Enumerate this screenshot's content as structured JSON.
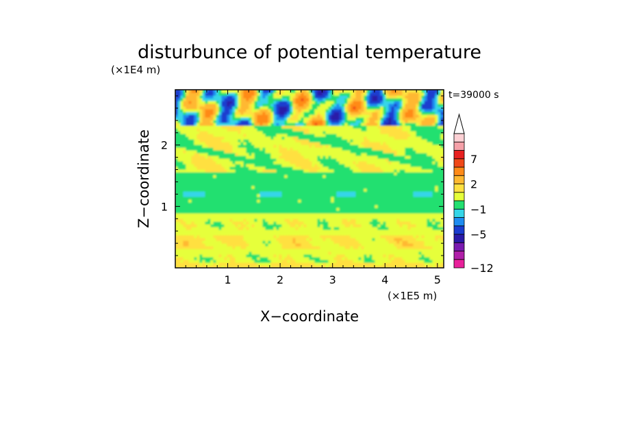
{
  "chart_data": {
    "type": "heatmap",
    "title": "disturbunce of potential temperature",
    "time_label": "t=39000 s",
    "xlabel": "X−coordinate",
    "ylabel": "Z−coordinate",
    "x_scale_label": "(×1E5 m)",
    "y_scale_label": "(×1E4 m)",
    "xlim": [
      0,
      5.12
    ],
    "ylim": [
      0,
      2.9
    ],
    "x_ticks": [
      1,
      2,
      3,
      4,
      5
    ],
    "y_ticks": [
      1,
      2
    ],
    "colorbar": {
      "levels": [
        -12,
        -11,
        -9,
        -7,
        -5,
        -3,
        -2,
        -1,
        0,
        1,
        2,
        4,
        6,
        7,
        9,
        11
      ],
      "tick_labels": [
        "−12",
        "−5",
        "−1",
        "2",
        "7"
      ],
      "tick_values": [
        -12,
        -5,
        -1,
        2,
        7
      ],
      "colors": [
        "#e8209a",
        "#b01fa8",
        "#7a1ab0",
        "#2a1aa8",
        "#1a3ccf",
        "#1e8cf0",
        "#35d6e8",
        "#22e070",
        "#e6ff3a",
        "#ffe040",
        "#ffb830",
        "#ff8a18",
        "#f04818",
        "#e82020",
        "#f5a0a8",
        "#fcd0d4"
      ],
      "extend": "max"
    },
    "field_bands": [
      {
        "z_range": [
          0,
          0.9
        ],
        "dominant": "yellow",
        "value_range": [
          0,
          2
        ]
      },
      {
        "z_range": [
          0.9,
          1.55
        ],
        "dominant": "green",
        "value_range": [
          -1,
          0
        ]
      },
      {
        "z_range": [
          1.55,
          2.3
        ],
        "dominant": "yellow",
        "value_range": [
          0,
          2
        ]
      },
      {
        "z_range": [
          2.3,
          2.9
        ],
        "dominant": "mixed",
        "value_range": [
          -5,
          7
        ]
      }
    ]
  }
}
